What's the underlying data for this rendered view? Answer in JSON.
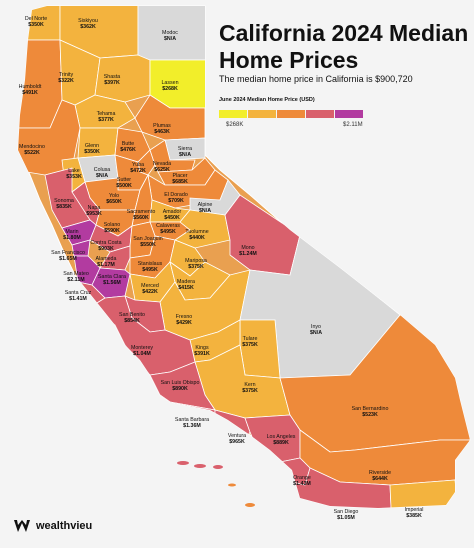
{
  "title": "California 2024 Median Home Prices",
  "subtitle": "The median home price in California is $900,720",
  "legend": {
    "title": "June 2024 Median Home Price (USD)",
    "min_label": "$268K",
    "max_label": "$2.11M",
    "colors": [
      "#f2ee2a",
      "#f3b33e",
      "#ee8a3a",
      "#d9606c",
      "#b23ba0"
    ],
    "na_color": "#d9d9d9"
  },
  "brand": {
    "name": "wealthvieu",
    "icon": "wealthvieu-logo-icon"
  },
  "counties": [
    {
      "name": "Del Norte",
      "value": "$350K",
      "price": 350
    },
    {
      "name": "Siskiyou",
      "value": "$362K",
      "price": 362
    },
    {
      "name": "Modoc",
      "value": "$N/A",
      "price": null
    },
    {
      "name": "Humboldt",
      "value": "$491K",
      "price": 491
    },
    {
      "name": "Trinity",
      "value": "$322K",
      "price": 322
    },
    {
      "name": "Shasta",
      "value": "$397K",
      "price": 397
    },
    {
      "name": "Lassen",
      "value": "$268K",
      "price": 268
    },
    {
      "name": "Tehama",
      "value": "$377K",
      "price": 377
    },
    {
      "name": "Plumas",
      "value": "$463K",
      "price": 463
    },
    {
      "name": "Mendocino",
      "value": "$522K",
      "price": 522
    },
    {
      "name": "Glenn",
      "value": "$350K",
      "price": 350
    },
    {
      "name": "Butte",
      "value": "$476K",
      "price": 476
    },
    {
      "name": "Sierra",
      "value": "$N/A",
      "price": null
    },
    {
      "name": "Colusa",
      "value": "$N/A",
      "price": null
    },
    {
      "name": "Yuba",
      "value": "$472K",
      "price": 472
    },
    {
      "name": "Nevada",
      "value": "$625K",
      "price": 625
    },
    {
      "name": "Placer",
      "value": "$685K",
      "price": 685
    },
    {
      "name": "Lake",
      "value": "$353K",
      "price": 353
    },
    {
      "name": "Sutter",
      "value": "$500K",
      "price": 500
    },
    {
      "name": "Yolo",
      "value": "$650K",
      "price": 650
    },
    {
      "name": "El Dorado",
      "value": "$709K",
      "price": 709
    },
    {
      "name": "Sonoma",
      "value": "$835K",
      "price": 835
    },
    {
      "name": "Napa",
      "value": "$953K",
      "price": 953
    },
    {
      "name": "Sacramento",
      "value": "$560K",
      "price": 560
    },
    {
      "name": "Amador",
      "value": "$450K",
      "price": 450
    },
    {
      "name": "Alpine",
      "value": "$N/A",
      "price": null
    },
    {
      "name": "Solano",
      "value": "$590K",
      "price": 590
    },
    {
      "name": "Calaveras",
      "value": "$495K",
      "price": 495
    },
    {
      "name": "Tuolumne",
      "value": "$440K",
      "price": 440
    },
    {
      "name": "Marin",
      "value": "$1.80M",
      "price": 1800
    },
    {
      "name": "Contra Costa",
      "value": "$903K",
      "price": 903
    },
    {
      "name": "San Joaquin",
      "value": "$550K",
      "price": 550
    },
    {
      "name": "Mono",
      "value": "$1.24M",
      "price": 1240
    },
    {
      "name": "San Francisco",
      "value": "$1.65M",
      "price": 1650
    },
    {
      "name": "Alameda",
      "value": "$1.17M",
      "price": 1170
    },
    {
      "name": "Stanislaus",
      "value": "$495K",
      "price": 495
    },
    {
      "name": "Mariposa",
      "value": "$375K",
      "price": 375
    },
    {
      "name": "San Mateo",
      "value": "$2.11M",
      "price": 2110
    },
    {
      "name": "Santa Clara",
      "value": "$1.56M",
      "price": 1560
    },
    {
      "name": "Merced",
      "value": "$422K",
      "price": 422
    },
    {
      "name": "Madera",
      "value": "$415K",
      "price": 415
    },
    {
      "name": "Santa Cruz",
      "value": "$1.41M",
      "price": 1410
    },
    {
      "name": "Fresno",
      "value": "$429K",
      "price": 429
    },
    {
      "name": "San Benito",
      "value": "$854K",
      "price": 854
    },
    {
      "name": "Inyo",
      "value": "$N/A",
      "price": null
    },
    {
      "name": "Tulare",
      "value": "$375K",
      "price": 375
    },
    {
      "name": "Kings",
      "value": "$391K",
      "price": 391
    },
    {
      "name": "Monterey",
      "value": "$1.04M",
      "price": 1040
    },
    {
      "name": "Kern",
      "value": "$375K",
      "price": 375
    },
    {
      "name": "San Luis Obispo",
      "value": "$890K",
      "price": 890
    },
    {
      "name": "San Bernardino",
      "value": "$523K",
      "price": 523
    },
    {
      "name": "Santa Barbara",
      "value": "$1.36M",
      "price": 1360
    },
    {
      "name": "Ventura",
      "value": "$965K",
      "price": 965
    },
    {
      "name": "Los Angeles",
      "value": "$889K",
      "price": 889
    },
    {
      "name": "Riverside",
      "value": "$644K",
      "price": 644
    },
    {
      "name": "Orange",
      "value": "$1.43M",
      "price": 1430
    },
    {
      "name": "San Diego",
      "value": "$1.05M",
      "price": 1050
    },
    {
      "name": "Imperial",
      "value": "$385K",
      "price": 385
    }
  ]
}
